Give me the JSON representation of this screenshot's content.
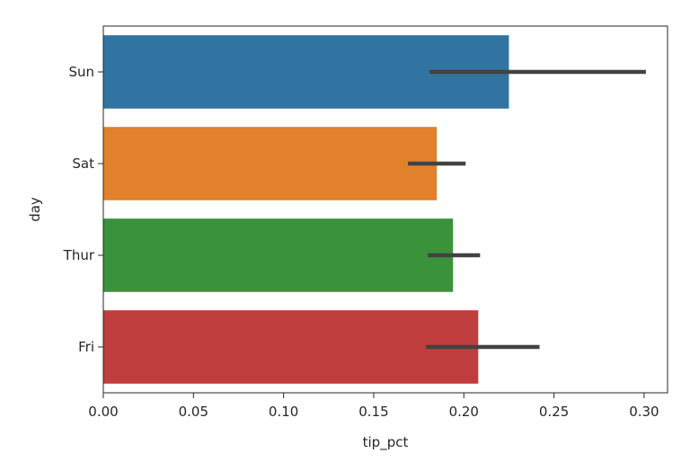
{
  "chart_data": {
    "type": "bar",
    "orientation": "horizontal",
    "title": "",
    "xlabel": "tip_pct",
    "ylabel": "day",
    "categories": [
      "Sun",
      "Sat",
      "Thur",
      "Fri"
    ],
    "values": [
      0.225,
      0.185,
      0.194,
      0.208
    ],
    "error_bars": [
      {
        "low": 0.181,
        "high": 0.301
      },
      {
        "low": 0.169,
        "high": 0.201
      },
      {
        "low": 0.18,
        "high": 0.209
      },
      {
        "low": 0.179,
        "high": 0.242
      }
    ],
    "colors": [
      "#3274a1",
      "#e1812c",
      "#3a923a",
      "#c03d3e"
    ],
    "error_color": "#424242",
    "xlim": [
      0,
      0.313
    ],
    "xticks": [
      {
        "value": 0.0,
        "label": "0.00"
      },
      {
        "value": 0.05,
        "label": "0.05"
      },
      {
        "value": 0.1,
        "label": "0.10"
      },
      {
        "value": 0.15,
        "label": "0.15"
      },
      {
        "value": 0.2,
        "label": "0.20"
      },
      {
        "value": 0.25,
        "label": "0.25"
      },
      {
        "value": 0.3,
        "label": "0.30"
      }
    ],
    "grid": false,
    "legend": "none"
  }
}
